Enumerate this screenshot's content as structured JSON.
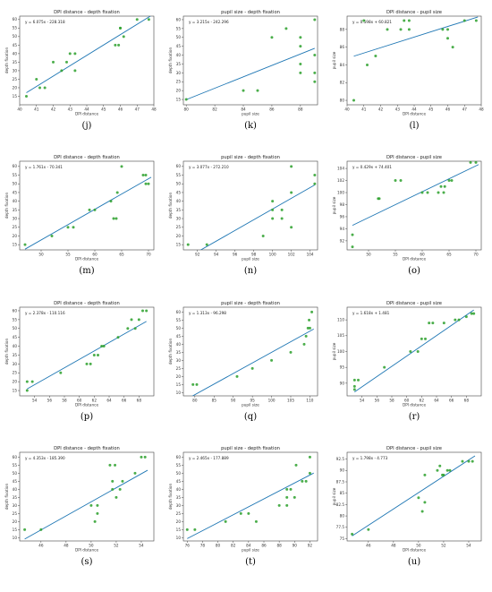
{
  "panels": [
    {
      "label": "(j)",
      "title": "DPI distance - depth fixation",
      "equation": "y = 6.075x - 228.318",
      "xlabel": "DPI distance",
      "ylabel": "depth fixation",
      "xlim": [
        40,
        48
      ],
      "ylim": [
        10,
        62
      ],
      "xticks": [
        40,
        41,
        42,
        43,
        44,
        45,
        46,
        47,
        48
      ],
      "yticks": [
        15,
        20,
        25,
        30,
        35,
        40,
        45,
        50,
        55,
        60
      ],
      "slope": 6.075,
      "intercept": -228.318,
      "fitrange": [
        40.4,
        47.8
      ],
      "points": [
        [
          40.4,
          15
        ],
        [
          41,
          25
        ],
        [
          41.2,
          20
        ],
        [
          41.5,
          20
        ],
        [
          42,
          35
        ],
        [
          42.5,
          30
        ],
        [
          42.8,
          35
        ],
        [
          43,
          40
        ],
        [
          43.3,
          40
        ],
        [
          43.3,
          30
        ],
        [
          45.7,
          45
        ],
        [
          45.9,
          45
        ],
        [
          46,
          55
        ],
        [
          46.2,
          50
        ],
        [
          46,
          55
        ],
        [
          47,
          60
        ],
        [
          47.7,
          60
        ]
      ]
    },
    {
      "label": "(k)",
      "title": "pupil size - depth fixation",
      "equation": "y = 3.215x - 242.296",
      "xlabel": "pupil size",
      "ylabel": "depth fixation",
      "xlim": [
        79.8,
        89.2
      ],
      "ylim": [
        12,
        62
      ],
      "xticks": [
        80,
        82,
        84,
        86,
        88
      ],
      "yticks": [
        15,
        20,
        25,
        30,
        35,
        40,
        45,
        50,
        55,
        60
      ],
      "slope": 3.215,
      "intercept": -242.296,
      "fitrange": [
        80,
        89
      ],
      "points": [
        [
          80,
          15
        ],
        [
          84,
          20
        ],
        [
          85,
          20
        ],
        [
          86,
          50
        ],
        [
          87,
          55
        ],
        [
          88,
          50
        ],
        [
          88,
          45
        ],
        [
          88,
          35
        ],
        [
          88,
          30
        ],
        [
          89,
          60
        ],
        [
          89,
          40
        ],
        [
          89,
          30
        ],
        [
          89,
          25
        ]
      ]
    },
    {
      "label": "(l)",
      "title": "DPI distance - pupil size",
      "equation": "y = 0.598x + 60.821",
      "xlabel": "DPI distance",
      "ylabel": "pupil size",
      "xlim": [
        40,
        48
      ],
      "ylim": [
        79.5,
        89.5
      ],
      "xticks": [
        40,
        41,
        42,
        43,
        44,
        45,
        46,
        47,
        48
      ],
      "yticks": [
        80,
        82,
        84,
        86,
        88
      ],
      "slope": 0.598,
      "intercept": 60.821,
      "fitrange": [
        40.4,
        47.8
      ],
      "points": [
        [
          40.4,
          80
        ],
        [
          41,
          89
        ],
        [
          41.2,
          84
        ],
        [
          41.7,
          85
        ],
        [
          42.4,
          88
        ],
        [
          43.2,
          88
        ],
        [
          43.4,
          89
        ],
        [
          43.7,
          89
        ],
        [
          43.7,
          88
        ],
        [
          45.7,
          88
        ],
        [
          46,
          87
        ],
        [
          46.3,
          86
        ],
        [
          46,
          88
        ],
        [
          47,
          89
        ],
        [
          47.7,
          89
        ]
      ]
    },
    {
      "label": "(m)",
      "title": "DPI distance - depth fixation",
      "equation": "y = 1.761x - 70.341",
      "xlabel": "DPI distance",
      "ylabel": "depth fixation",
      "xlim": [
        46,
        71
      ],
      "ylim": [
        12,
        63
      ],
      "xticks": [
        50,
        55,
        60,
        65,
        70
      ],
      "yticks": [
        15,
        20,
        25,
        30,
        35,
        40,
        45,
        50,
        55,
        60
      ],
      "slope": 1.761,
      "intercept": -70.341,
      "fitrange": [
        47,
        70.5
      ],
      "points": [
        [
          47,
          15
        ],
        [
          52,
          20
        ],
        [
          55,
          25
        ],
        [
          56,
          25
        ],
        [
          59,
          35
        ],
        [
          60,
          35
        ],
        [
          63,
          40
        ],
        [
          63.5,
          30
        ],
        [
          64,
          30
        ],
        [
          64.2,
          45
        ],
        [
          65,
          60
        ],
        [
          69,
          55
        ],
        [
          69.5,
          50
        ],
        [
          70,
          50
        ],
        [
          69.5,
          55
        ]
      ]
    },
    {
      "label": "(n)",
      "title": "pupil size - depth fixation",
      "equation": "y = 3.077x - 272.210",
      "xlabel": "pupil size",
      "ylabel": "depth fixation",
      "xlim": [
        90.5,
        104.8
      ],
      "ylim": [
        12,
        63
      ],
      "xticks": [
        92,
        94,
        96,
        98,
        100,
        102,
        104
      ],
      "yticks": [
        15,
        20,
        25,
        30,
        35,
        40,
        45,
        50,
        55,
        60
      ],
      "slope": 3.077,
      "intercept": -272.21,
      "fitrange": [
        91,
        104.5
      ],
      "points": [
        [
          91,
          15
        ],
        [
          93,
          15
        ],
        [
          99,
          20
        ],
        [
          100,
          30
        ],
        [
          100,
          35
        ],
        [
          100,
          40
        ],
        [
          101,
          30
        ],
        [
          101,
          35
        ],
        [
          102,
          45
        ],
        [
          102,
          25
        ],
        [
          102,
          60
        ],
        [
          104.5,
          55
        ],
        [
          104.5,
          50
        ]
      ]
    },
    {
      "label": "(o)",
      "title": "DPI distance - pupil size",
      "equation": "y = 0.429x + 74.401",
      "xlabel": "DPI distance",
      "ylabel": "pupil size",
      "xlim": [
        46,
        71
      ],
      "ylim": [
        90.5,
        105.2
      ],
      "xticks": [
        50,
        55,
        60,
        65,
        70
      ],
      "yticks": [
        92,
        94,
        96,
        98,
        100,
        102,
        104
      ],
      "slope": 0.429,
      "intercept": 74.401,
      "fitrange": [
        47,
        70.5
      ],
      "points": [
        [
          47,
          91
        ],
        [
          47,
          93
        ],
        [
          52,
          99
        ],
        [
          51.8,
          99
        ],
        [
          55,
          102
        ],
        [
          56,
          102
        ],
        [
          60,
          100
        ],
        [
          61,
          100
        ],
        [
          63,
          100
        ],
        [
          63.5,
          101
        ],
        [
          64,
          100
        ],
        [
          64.2,
          101
        ],
        [
          65,
          102
        ],
        [
          65.5,
          102
        ],
        [
          69,
          105
        ],
        [
          70,
          105
        ]
      ]
    },
    {
      "label": "(p)",
      "title": "DPI distance - depth fixation",
      "equation": "y = 2.378x - 110.116",
      "xlabel": "DPI distance",
      "ylabel": "depth fixation",
      "xlim": [
        52,
        70
      ],
      "ylim": [
        12,
        62
      ],
      "xticks": [
        54,
        56,
        58,
        60,
        62,
        64,
        66,
        68
      ],
      "yticks": [
        15,
        20,
        25,
        30,
        35,
        40,
        45,
        50,
        55,
        60
      ],
      "slope": 2.378,
      "intercept": -110.116,
      "fitrange": [
        53,
        69
      ],
      "points": [
        [
          53,
          20
        ],
        [
          53,
          15
        ],
        [
          53.7,
          20
        ],
        [
          57.5,
          25
        ],
        [
          61,
          30
        ],
        [
          61.5,
          30
        ],
        [
          62,
          35
        ],
        [
          62.5,
          35
        ],
        [
          63,
          40
        ],
        [
          63.3,
          40
        ],
        [
          65.2,
          45
        ],
        [
          66.5,
          50
        ],
        [
          67,
          55
        ],
        [
          67.5,
          50
        ],
        [
          68,
          55
        ],
        [
          68.5,
          60
        ],
        [
          69,
          60
        ]
      ]
    },
    {
      "label": "(q)",
      "title": "pupil size - depth fixation",
      "equation": "y = 1.313x - 96.298",
      "xlabel": "pupil size",
      "ylabel": "depth fixation",
      "xlim": [
        77,
        112
      ],
      "ylim": [
        8,
        63
      ],
      "xticks": [
        80,
        85,
        90,
        95,
        100,
        105,
        110
      ],
      "yticks": [
        10,
        15,
        20,
        25,
        30,
        35,
        40,
        45,
        50,
        55,
        60
      ],
      "slope": 1.313,
      "intercept": -96.298,
      "fitrange": [
        79,
        111
      ],
      "points": [
        [
          79.5,
          15
        ],
        [
          80.5,
          15
        ],
        [
          91,
          20
        ],
        [
          95,
          25
        ],
        [
          100,
          30
        ],
        [
          105,
          35
        ],
        [
          108.5,
          40
        ],
        [
          109,
          45
        ],
        [
          109.5,
          50
        ],
        [
          109.8,
          55
        ],
        [
          110,
          50
        ],
        [
          110.5,
          60
        ]
      ]
    },
    {
      "label": "(r)",
      "title": "DPI distance - pupil size",
      "equation": "y = 1.618x + 1.481",
      "xlabel": "DPI distance",
      "ylabel": "pupil size",
      "xlim": [
        52,
        70
      ],
      "ylim": [
        86,
        114
      ],
      "xticks": [
        54,
        56,
        58,
        60,
        62,
        64,
        66,
        68
      ],
      "yticks": [
        90,
        95,
        100,
        105,
        110
      ],
      "slope": 1.618,
      "intercept": 1.481,
      "fitrange": [
        53,
        69
      ],
      "points": [
        [
          53,
          91
        ],
        [
          53,
          89
        ],
        [
          53,
          88
        ],
        [
          53.5,
          91
        ],
        [
          57,
          95
        ],
        [
          60.5,
          100
        ],
        [
          61.5,
          100
        ],
        [
          62,
          104
        ],
        [
          62.5,
          104
        ],
        [
          63,
          109
        ],
        [
          63.5,
          109
        ],
        [
          65,
          109
        ],
        [
          66.5,
          110
        ],
        [
          67,
          110
        ],
        [
          68,
          111
        ],
        [
          68.7,
          112
        ],
        [
          69,
          112
        ]
      ]
    },
    {
      "label": "(s)",
      "title": "DPI distance - depth fixation",
      "equation": "y = 4.353x - 185.390",
      "xlabel": "DPI distance",
      "ylabel": "depth fixation",
      "xlim": [
        44.3,
        55
      ],
      "ylim": [
        8,
        63
      ],
      "xticks": [
        46,
        48,
        50,
        52,
        54
      ],
      "yticks": [
        10,
        15,
        20,
        25,
        30,
        35,
        40,
        45,
        50,
        55,
        60
      ],
      "slope": 4.353,
      "intercept": -185.39,
      "fitrange": [
        44.7,
        54.5
      ],
      "points": [
        [
          44.7,
          15
        ],
        [
          46,
          15
        ],
        [
          50,
          30
        ],
        [
          50.3,
          20
        ],
        [
          50.5,
          25
        ],
        [
          50.5,
          30
        ],
        [
          51.5,
          55
        ],
        [
          51.7,
          40
        ],
        [
          51.7,
          45
        ],
        [
          51.9,
          55
        ],
        [
          52,
          35
        ],
        [
          52.3,
          40
        ],
        [
          52.5,
          45
        ],
        [
          53.5,
          50
        ],
        [
          54,
          60
        ],
        [
          54.3,
          60
        ]
      ]
    },
    {
      "label": "(t)",
      "title": "pupil size - depth fixation",
      "equation": "y = 2.465x - 177.889",
      "xlabel": "pupil size",
      "ylabel": "depth fixation",
      "xlim": [
        75.5,
        93
      ],
      "ylim": [
        8,
        63
      ],
      "xticks": [
        76,
        78,
        80,
        82,
        84,
        86,
        88,
        90,
        92
      ],
      "yticks": [
        10,
        15,
        20,
        25,
        30,
        35,
        40,
        45,
        50,
        55,
        60
      ],
      "slope": 2.465,
      "intercept": -177.889,
      "fitrange": [
        76,
        92.5
      ],
      "points": [
        [
          76,
          15
        ],
        [
          77,
          15
        ],
        [
          81,
          20
        ],
        [
          83,
          25
        ],
        [
          84,
          25
        ],
        [
          85,
          20
        ],
        [
          88,
          30
        ],
        [
          89,
          35
        ],
        [
          89,
          40
        ],
        [
          89,
          30
        ],
        [
          89.5,
          40
        ],
        [
          90,
          35
        ],
        [
          90.2,
          55
        ],
        [
          91,
          45
        ],
        [
          91.5,
          45
        ],
        [
          92,
          50
        ],
        [
          92,
          60
        ]
      ]
    },
    {
      "label": "(u)",
      "title": "DPI distance - pupil size",
      "equation": "y = 1.798x - 4.773",
      "xlabel": "DPI distance",
      "ylabel": "pupil size",
      "xlim": [
        44.3,
        55
      ],
      "ylim": [
        74.5,
        94
      ],
      "xticks": [
        46,
        48,
        50,
        52,
        54
      ],
      "yticks": [
        75,
        77.5,
        80,
        82.5,
        85,
        87.5,
        90,
        92.5
      ],
      "slope": 1.798,
      "intercept": -4.773,
      "fitrange": [
        44.7,
        54.5
      ],
      "points": [
        [
          44.7,
          76
        ],
        [
          46,
          77
        ],
        [
          50,
          84
        ],
        [
          50.3,
          81
        ],
        [
          50.5,
          83
        ],
        [
          50.5,
          89
        ],
        [
          51.5,
          90
        ],
        [
          51.7,
          91
        ],
        [
          51.9,
          89
        ],
        [
          52,
          89
        ],
        [
          52.3,
          90
        ],
        [
          52.5,
          90
        ],
        [
          53.5,
          92
        ],
        [
          54,
          92
        ],
        [
          54.3,
          92
        ]
      ]
    }
  ]
}
